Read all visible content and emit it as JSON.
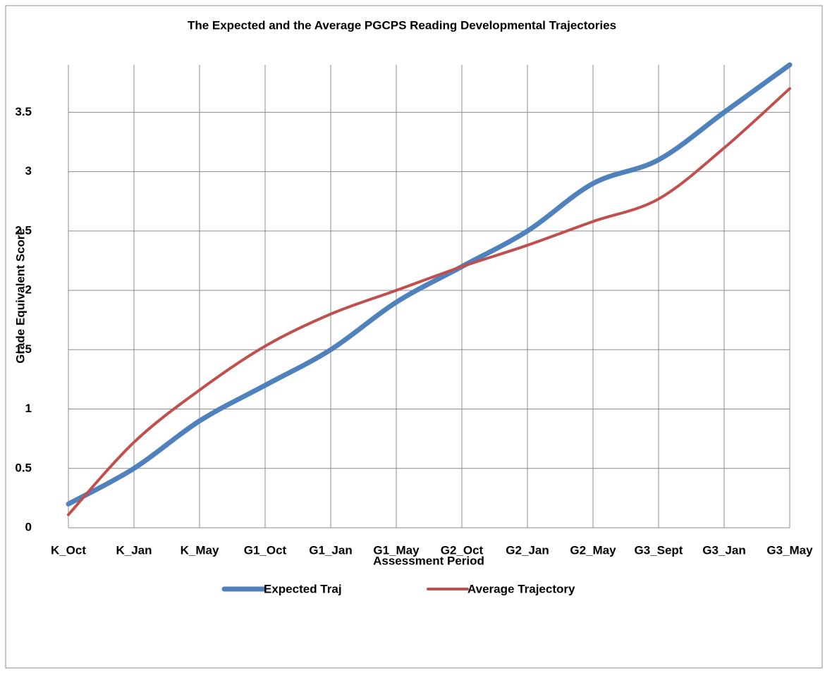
{
  "chart_data": {
    "type": "line",
    "title": "The Expected and the Average  PGCPS Reading Developmental Trajectories",
    "xlabel": "Assessment Period",
    "ylabel": "Grade Equivalent Score",
    "categories": [
      "K_Oct",
      "K_Jan",
      "K_May",
      "G1_Oct",
      "G1_Jan",
      "G1_May",
      "G2_Oct",
      "G2_Jan",
      "G2_May",
      "G3_Sept",
      "G3_Jan",
      "G3_May"
    ],
    "series": [
      {
        "name": "Expected Traj",
        "color": "#4f81bd",
        "values": [
          0.2,
          0.5,
          0.9,
          1.2,
          1.5,
          1.9,
          2.2,
          2.5,
          2.9,
          3.1,
          3.5,
          3.9
        ]
      },
      {
        "name": "Average Trajectory",
        "color": "#c0504d",
        "values": [
          0.11,
          0.72,
          1.16,
          1.53,
          1.8,
          2.0,
          2.2,
          2.38,
          2.58,
          2.77,
          3.2,
          3.7
        ]
      }
    ],
    "ylim": [
      0,
      3.9
    ],
    "yticks": [
      0,
      0.5,
      1,
      1.5,
      2,
      2.5,
      3,
      3.5
    ],
    "grid": true,
    "legend": "bottom"
  }
}
